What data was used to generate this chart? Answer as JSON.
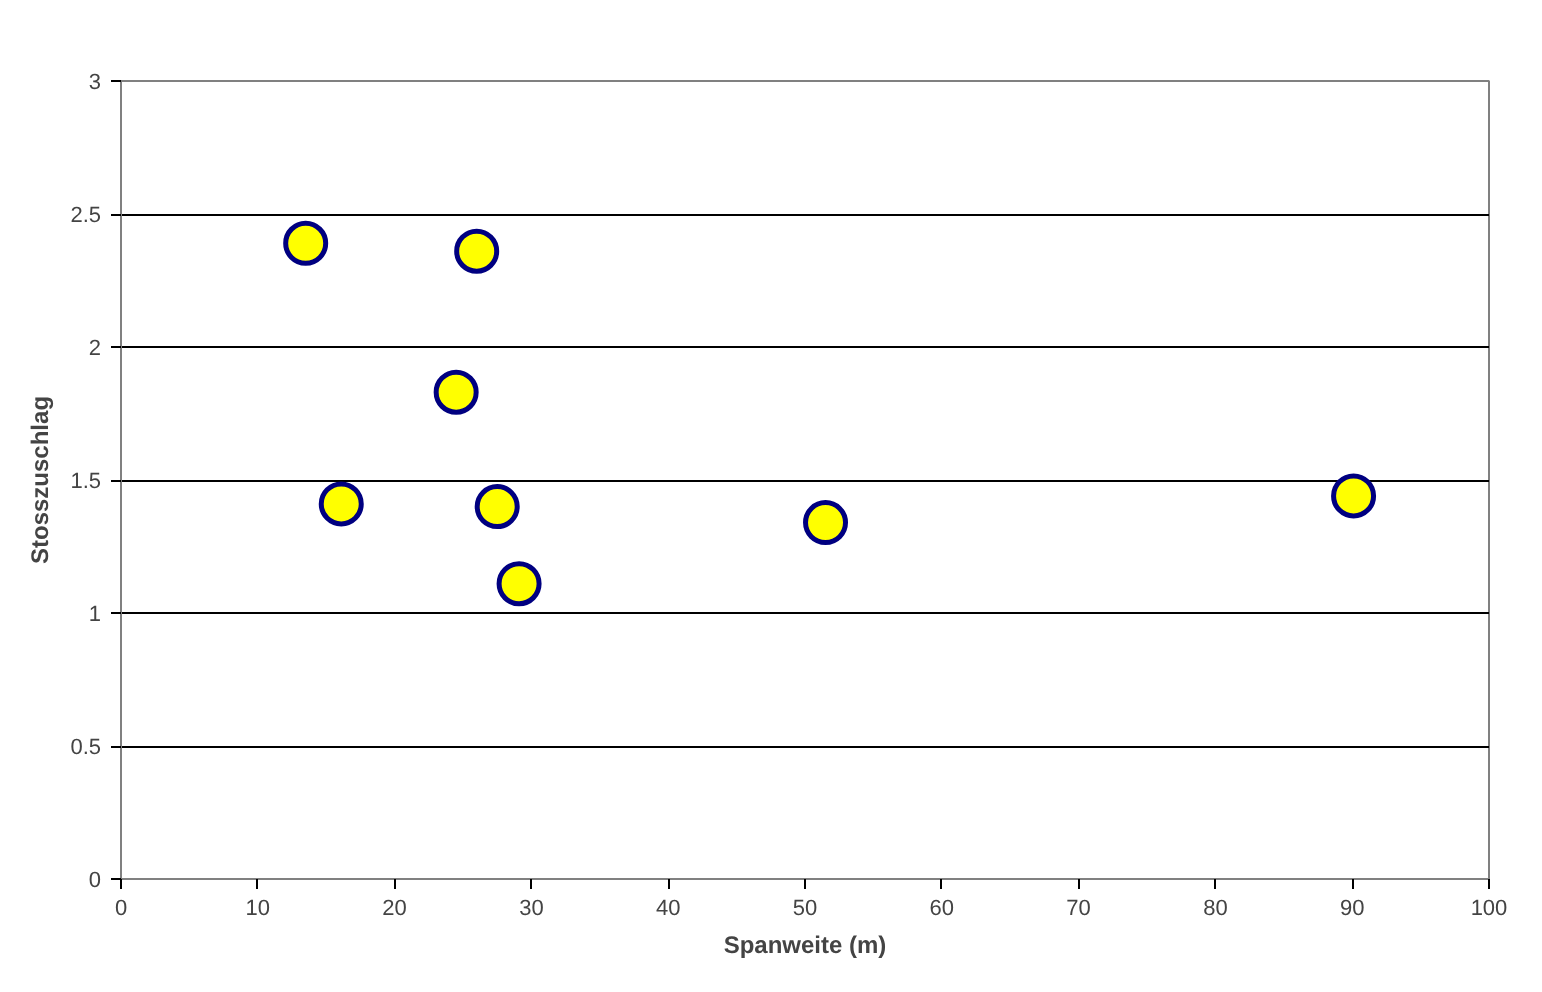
{
  "chart_data": {
    "type": "scatter",
    "xlabel": "Spanweite (m)",
    "ylabel": "Stosszuschlag",
    "x": [
      13.5,
      16.1,
      24.5,
      26.0,
      27.5,
      29.1,
      51.5,
      90.1
    ],
    "series": [
      {
        "color": "#ffff00",
        "values": [
          2.39,
          1.41,
          1.83,
          2.36,
          1.4,
          1.11,
          1.34,
          1.44
        ]
      }
    ],
    "xlim": [
      0,
      100
    ],
    "xticks": [
      0,
      10,
      20,
      30,
      40,
      50,
      60,
      70,
      80,
      90,
      100
    ],
    "ylim": [
      0,
      3
    ],
    "yticks": [
      0,
      0.5,
      1,
      1.5,
      2,
      2.5,
      3
    ],
    "grid": "y",
    "marker": "circle"
  }
}
